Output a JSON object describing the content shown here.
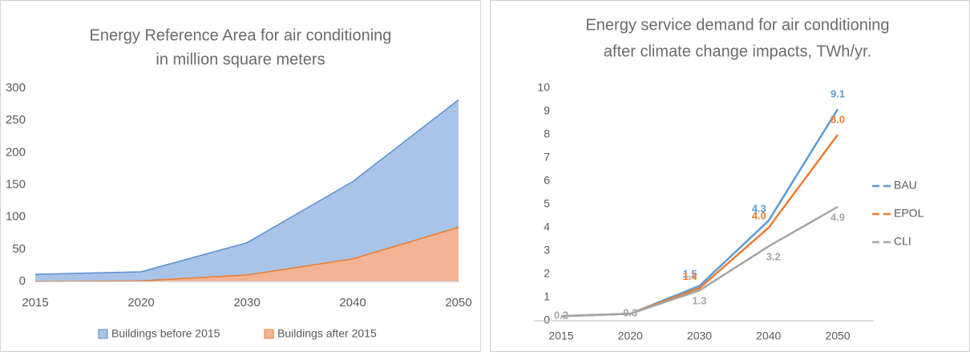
{
  "chart_data": [
    {
      "type": "area",
      "title": [
        "Energy Reference Area for air conditioning",
        "in million square meters"
      ],
      "categories": [
        "2015",
        "2020",
        "2030",
        "2040",
        "2050"
      ],
      "series": [
        {
          "name": "Buildings before 2015",
          "color": "#5b8fcf",
          "fill": "#a9c4e8",
          "values": [
            11,
            15,
            60,
            155,
            282
          ]
        },
        {
          "name": "Buildings after 2015",
          "color": "#ed7d31",
          "fill": "#f4b394",
          "values": [
            0,
            1,
            10,
            35,
            84
          ]
        }
      ],
      "ylim": [
        0,
        300
      ],
      "yticks": [
        0,
        50,
        100,
        150,
        200,
        250,
        300
      ],
      "legend": "bottom"
    },
    {
      "type": "line",
      "title": [
        "Energy service demand for air conditioning",
        "after climate change impacts, TWh/yr."
      ],
      "categories": [
        "2015",
        "2020",
        "2030",
        "2040",
        "2050"
      ],
      "series": [
        {
          "name": "BAU",
          "color": "#5b9bd5",
          "values": [
            0.2,
            0.3,
            1.5,
            4.3,
            9.1
          ],
          "value_labels": [
            null,
            null,
            "1.5",
            "4.3",
            "9.1"
          ]
        },
        {
          "name": "EPOL",
          "color": "#ed7d31",
          "values": [
            0.2,
            0.3,
            1.4,
            4.0,
            8.0
          ],
          "value_labels": [
            null,
            null,
            "1.4",
            "4.0",
            "8.0"
          ]
        },
        {
          "name": "CLI",
          "color": "#a5a5a5",
          "values": [
            0.2,
            0.3,
            1.3,
            3.2,
            4.9
          ],
          "value_labels": [
            "0.2",
            "0.3",
            "1.3",
            "3.2",
            "4.9"
          ]
        }
      ],
      "ylim": [
        0,
        10
      ],
      "yticks": [
        0,
        1,
        2,
        3,
        4,
        5,
        6,
        7,
        8,
        9,
        10
      ],
      "legend": "right"
    }
  ]
}
